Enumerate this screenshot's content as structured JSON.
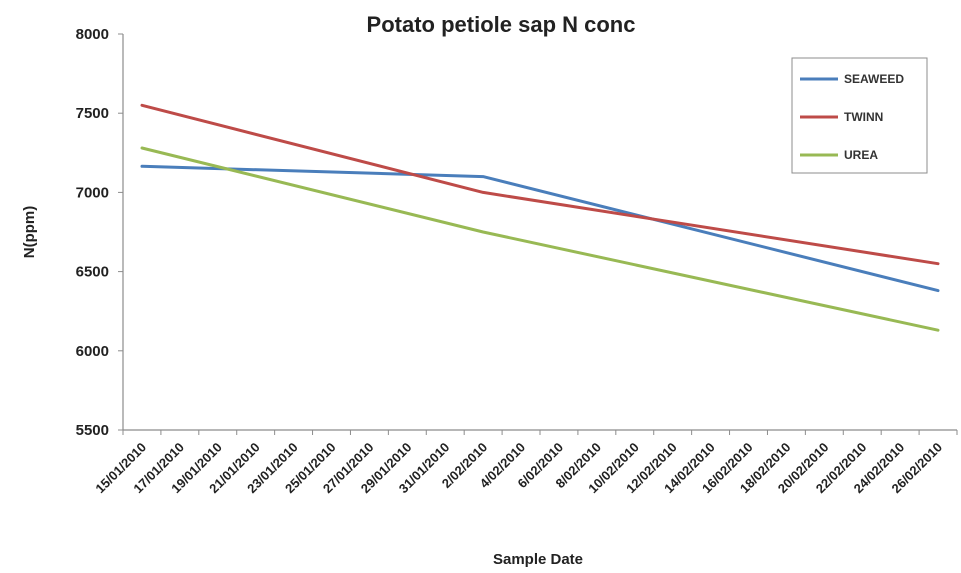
{
  "chart_data": {
    "type": "line",
    "title": "Potato petiole sap N conc",
    "xlabel": "Sample Date",
    "ylabel": "N(ppm)",
    "ylim": [
      5500,
      8000
    ],
    "yticks": [
      "8000",
      "7500",
      "7000",
      "6500",
      "6000",
      "5500"
    ],
    "x": [
      "15/01/2010",
      "17/01/2010",
      "19/01/2010",
      "21/01/2010",
      "23/01/2010",
      "25/01/2010",
      "27/01/2010",
      "29/01/2010",
      "31/01/2010",
      "2/02/2010",
      "4/02/2010",
      "6/02/2010",
      "8/02/2010",
      "10/02/2010",
      "12/02/2010",
      "14/02/2010",
      "16/02/2010",
      "18/02/2010",
      "20/02/2010",
      "22/02/2010",
      "24/02/2010",
      "26/02/2010"
    ],
    "grid": false,
    "legend_position": "top-right",
    "series": [
      {
        "name": "SEAWEED",
        "color": "#4a7ebb",
        "points": [
          {
            "x": "15/01/2010",
            "y": 7165
          },
          {
            "x": "2/02/2010",
            "y": 7100
          },
          {
            "x": "26/02/2010",
            "y": 6380
          }
        ]
      },
      {
        "name": "TWINN",
        "color": "#be4b48",
        "points": [
          {
            "x": "15/01/2010",
            "y": 7550
          },
          {
            "x": "2/02/2010",
            "y": 7000
          },
          {
            "x": "26/02/2010",
            "y": 6550
          }
        ]
      },
      {
        "name": "UREA",
        "color": "#98b954",
        "points": [
          {
            "x": "15/01/2010",
            "y": 7280
          },
          {
            "x": "2/02/2010",
            "y": 6750
          },
          {
            "x": "26/02/2010",
            "y": 6130
          }
        ]
      }
    ]
  }
}
